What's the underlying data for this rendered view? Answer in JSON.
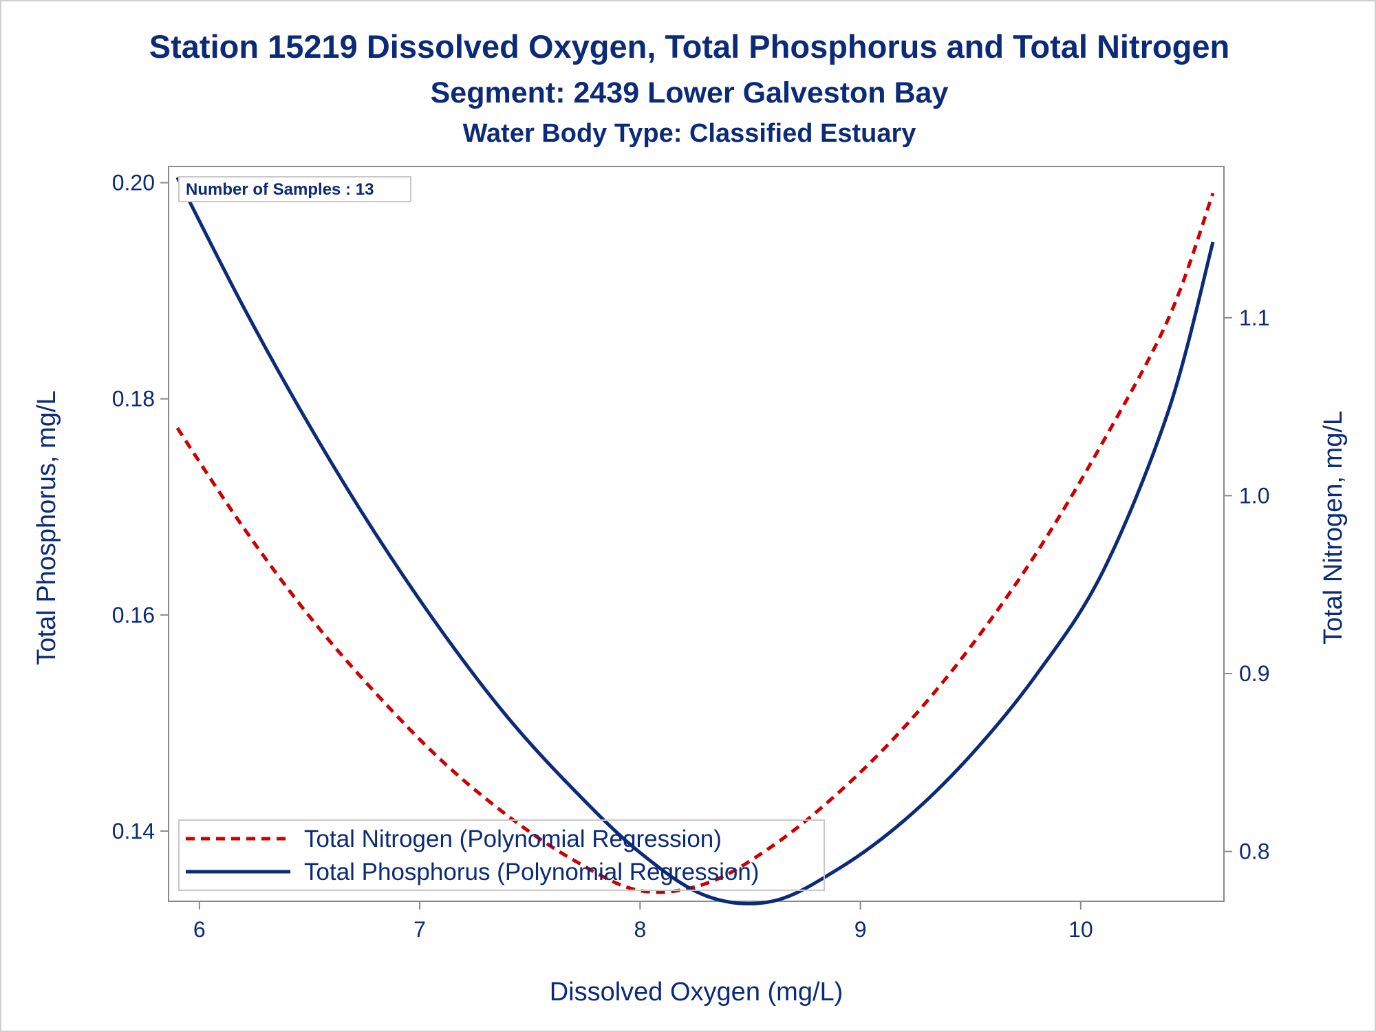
{
  "chart_data": {
    "type": "line",
    "title": "Station 15219  Dissolved Oxygen, Total Phosphorus and Total Nitrogen",
    "subtitle": "Segment: 2439  Lower Galveston Bay",
    "subtitle2": "Water Body Type: Classified Estuary",
    "xlabel": "Dissolved Oxygen (mg/L)",
    "ylabel": "Total Phosphorus, mg/L",
    "y2label": "Total Nitrogen, mg/L",
    "xlim": [
      5.86,
      10.65
    ],
    "ylim": [
      0.1335,
      0.2015
    ],
    "y2lim": [
      0.772,
      1.185
    ],
    "x_ticks": [
      "6",
      "7",
      "8",
      "9",
      "10"
    ],
    "x_tick_values": [
      6,
      7,
      8,
      9,
      10
    ],
    "y_ticks": [
      "0.14",
      "0.16",
      "0.18",
      "0.20"
    ],
    "y_tick_values": [
      0.14,
      0.16,
      0.18,
      0.2
    ],
    "y2_ticks": [
      "0.8",
      "0.9",
      "1.0",
      "1.1"
    ],
    "y2_tick_values": [
      0.8,
      0.9,
      1.0,
      1.1
    ],
    "annotation": "Number of Samples : 13",
    "grid": false,
    "legend_position": "bottom-left",
    "series": [
      {
        "name": "Total Nitrogen (Polynomial Regression)",
        "axis": "right",
        "color": "#cc0000",
        "style": "dashed",
        "x": [
          5.9,
          6.2,
          6.5,
          6.8,
          7.1,
          7.4,
          7.7,
          8.0,
          8.3,
          8.6,
          8.9,
          9.2,
          9.5,
          9.8,
          10.1,
          10.4,
          10.6
        ],
        "values": [
          1.038,
          0.982,
          0.932,
          0.889,
          0.851,
          0.82,
          0.795,
          0.778,
          0.782,
          0.803,
          0.833,
          0.87,
          0.915,
          0.968,
          1.03,
          1.1,
          1.17
        ]
      },
      {
        "name": "Total Phosphorus (Polynomial Regression)",
        "axis": "left",
        "color": "#0b2a78",
        "style": "solid",
        "x": [
          5.9,
          6.2,
          6.5,
          6.8,
          7.1,
          7.4,
          7.7,
          8.0,
          8.3,
          8.6,
          8.9,
          9.2,
          9.5,
          9.8,
          10.1,
          10.4,
          10.6
        ],
        "values": [
          0.2005,
          0.1885,
          0.1775,
          0.1675,
          0.1585,
          0.1505,
          0.1438,
          0.138,
          0.134,
          0.1335,
          0.1365,
          0.141,
          0.147,
          0.1545,
          0.164,
          0.179,
          0.1945
        ]
      }
    ]
  }
}
